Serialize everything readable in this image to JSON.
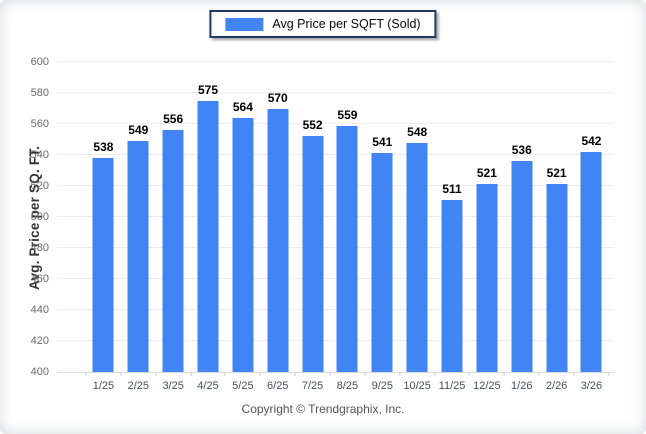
{
  "legend": {
    "label": "Avg Price per SQFT (Sold)",
    "swatch_color": "#4184F4"
  },
  "chart_data": {
    "type": "bar",
    "title": "",
    "series_name": "Avg Price per SQFT (Sold)",
    "categories": [
      "1/25",
      "2/25",
      "3/25",
      "4/25",
      "5/25",
      "6/25",
      "7/25",
      "8/25",
      "9/25",
      "10/25",
      "11/25",
      "12/25",
      "1/26",
      "2/26",
      "3/26"
    ],
    "values": [
      538,
      549,
      556,
      575,
      564,
      570,
      552,
      559,
      541,
      548,
      511,
      521,
      536,
      521,
      542
    ],
    "xlabel": "",
    "ylabel": "Avg. Price per SQ. FT.",
    "ylim": [
      400,
      600
    ],
    "ytick_step": 20,
    "grid": "horizontal",
    "legend_position": "top-center",
    "bar_color": "#4184F4",
    "data_labels": true
  },
  "footer": {
    "copyright": "Copyright © Trendgraphix, Inc."
  }
}
